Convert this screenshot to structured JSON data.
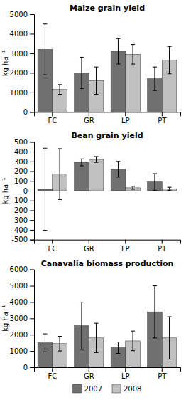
{
  "chart_data": [
    {
      "type": "bar",
      "title": "Maize grain yield",
      "ylabel": "kg ha⁻¹",
      "categories": [
        "FC",
        "GR",
        "LP",
        "PT"
      ],
      "series": [
        {
          "name": "2007",
          "color": "#707070",
          "values": [
            3200,
            2000,
            3100,
            1700
          ],
          "errors": [
            1300,
            800,
            650,
            600
          ]
        },
        {
          "name": "2008",
          "color": "#c0c0c0",
          "values": [
            1150,
            1600,
            2950,
            2650
          ],
          "errors": [
            250,
            700,
            500,
            700
          ]
        }
      ],
      "ylim": [
        0,
        5000
      ],
      "yticks": [
        0,
        1000,
        2000,
        3000,
        4000,
        5000
      ],
      "grid": false,
      "legend": false
    },
    {
      "type": "bar",
      "title": "Bean grain yield",
      "ylabel": "kg ha⁻¹",
      "categories": [
        "FC",
        "GR",
        "LP",
        "PT"
      ],
      "series": [
        {
          "name": "2007",
          "color": "#707070",
          "values": [
            15,
            290,
            220,
            90
          ],
          "errors": [
            420,
            35,
            80,
            85
          ]
        },
        {
          "name": "2008",
          "color": "#c0c0c0",
          "values": [
            170,
            320,
            30,
            20
          ],
          "errors": [
            260,
            30,
            15,
            15
          ]
        }
      ],
      "ylim": [
        -500,
        500
      ],
      "yticks": [
        -500,
        -400,
        -300,
        -200,
        -100,
        0,
        100,
        200,
        300,
        400,
        500
      ],
      "grid": false,
      "legend": false
    },
    {
      "type": "bar",
      "title": "Canavalia biomass production",
      "ylabel": "kg ha⁻¹",
      "categories": [
        "FC",
        "GR",
        "LP",
        "PT"
      ],
      "series": [
        {
          "name": "2007",
          "color": "#707070",
          "values": [
            1500,
            2550,
            1200,
            3400
          ],
          "errors": [
            550,
            1450,
            350,
            1600
          ]
        },
        {
          "name": "2008",
          "color": "#c0c0c0",
          "values": [
            1450,
            1800,
            1620,
            1800
          ],
          "errors": [
            450,
            900,
            600,
            1300
          ]
        }
      ],
      "ylim": [
        0,
        6000
      ],
      "yticks": [
        0,
        1000,
        2000,
        3000,
        4000,
        5000,
        6000
      ],
      "grid": false,
      "legend": "bottom"
    }
  ]
}
